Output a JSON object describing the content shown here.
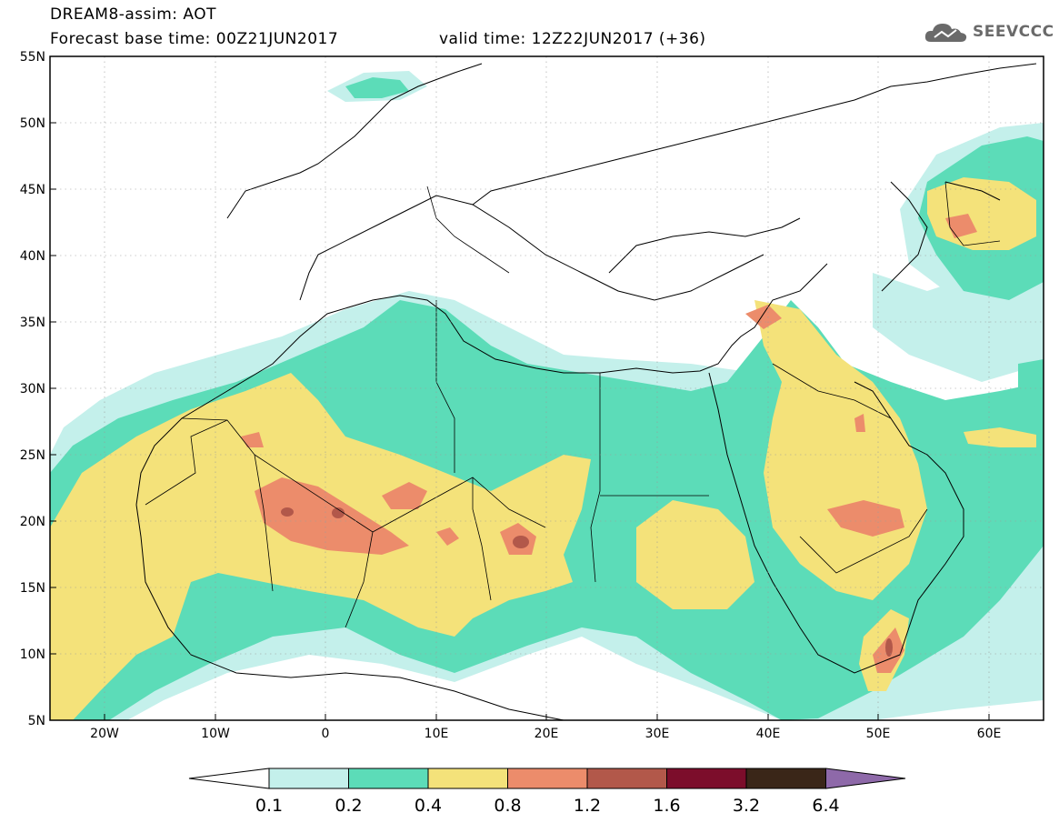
{
  "header": {
    "title": "DREAM8-assim: AOT",
    "base_time": "Forecast base time: 00Z21JUN2017",
    "valid_time": "valid time: 12Z22JUN2017 (+36)"
  },
  "logo": {
    "text": "SEEVCCC",
    "icon": "cloud-icon"
  },
  "map": {
    "lat_ticks": [
      "55N",
      "50N",
      "45N",
      "40N",
      "35N",
      "30N",
      "25N",
      "20N",
      "15N",
      "10N",
      "5N"
    ],
    "lon_ticks": [
      "20W",
      "10W",
      "0",
      "10E",
      "20E",
      "30E",
      "40E",
      "50E",
      "60E"
    ],
    "lon_range": [
      -25,
      65
    ],
    "lat_range": [
      5,
      55
    ]
  },
  "colorbar": {
    "labels": [
      "0.1",
      "0.2",
      "0.4",
      "0.8",
      "1.2",
      "1.6",
      "3.2",
      "6.4"
    ],
    "colors": [
      "#c4f0eb",
      "#5cdcb8",
      "#f4e27a",
      "#ec8c6b",
      "#b2584a",
      "#7c0d2b",
      "#3a2618"
    ],
    "under_color": "#ffffff",
    "over_color": "#8e69a9"
  },
  "colors": {
    "level1": "#c4f0eb",
    "level2": "#5cdcb8",
    "level3": "#f4e27a",
    "level4": "#ec8c6b",
    "level5": "#b2584a",
    "level6": "#7c0d2b"
  }
}
